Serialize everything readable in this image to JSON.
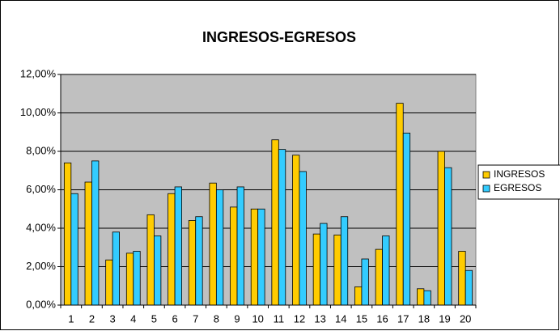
{
  "chart_data": {
    "type": "bar",
    "title": "INGRESOS-EGRESOS",
    "categories": [
      "1",
      "2",
      "3",
      "4",
      "5",
      "6",
      "7",
      "8",
      "9",
      "10",
      "11",
      "12",
      "13",
      "14",
      "15",
      "16",
      "17",
      "18",
      "19",
      "20"
    ],
    "series": [
      {
        "name": "INGRESOS",
        "color": "#ffcc00",
        "values": [
          7.4,
          6.4,
          2.35,
          2.7,
          4.7,
          5.8,
          4.4,
          6.35,
          5.1,
          5.0,
          8.6,
          7.8,
          3.7,
          3.65,
          0.95,
          2.9,
          10.5,
          0.85,
          8.0,
          2.8
        ]
      },
      {
        "name": "EGRESOS",
        "color": "#33ccff",
        "values": [
          5.8,
          7.5,
          3.8,
          2.8,
          3.6,
          6.15,
          4.6,
          6.0,
          6.15,
          5.0,
          8.1,
          6.95,
          4.25,
          4.6,
          2.4,
          3.6,
          8.95,
          0.75,
          7.15,
          1.8
        ]
      }
    ],
    "ylim": [
      0,
      12
    ],
    "yticks": [
      {
        "value": 0,
        "label": "0,00%"
      },
      {
        "value": 2,
        "label": "2,00%"
      },
      {
        "value": 4,
        "label": "4,00%"
      },
      {
        "value": 6,
        "label": "6,00%"
      },
      {
        "value": 8,
        "label": "8,00%"
      },
      {
        "value": 10,
        "label": "10,00%"
      },
      {
        "value": 12,
        "label": "12,00%"
      }
    ],
    "grid": true,
    "legend": "right"
  }
}
